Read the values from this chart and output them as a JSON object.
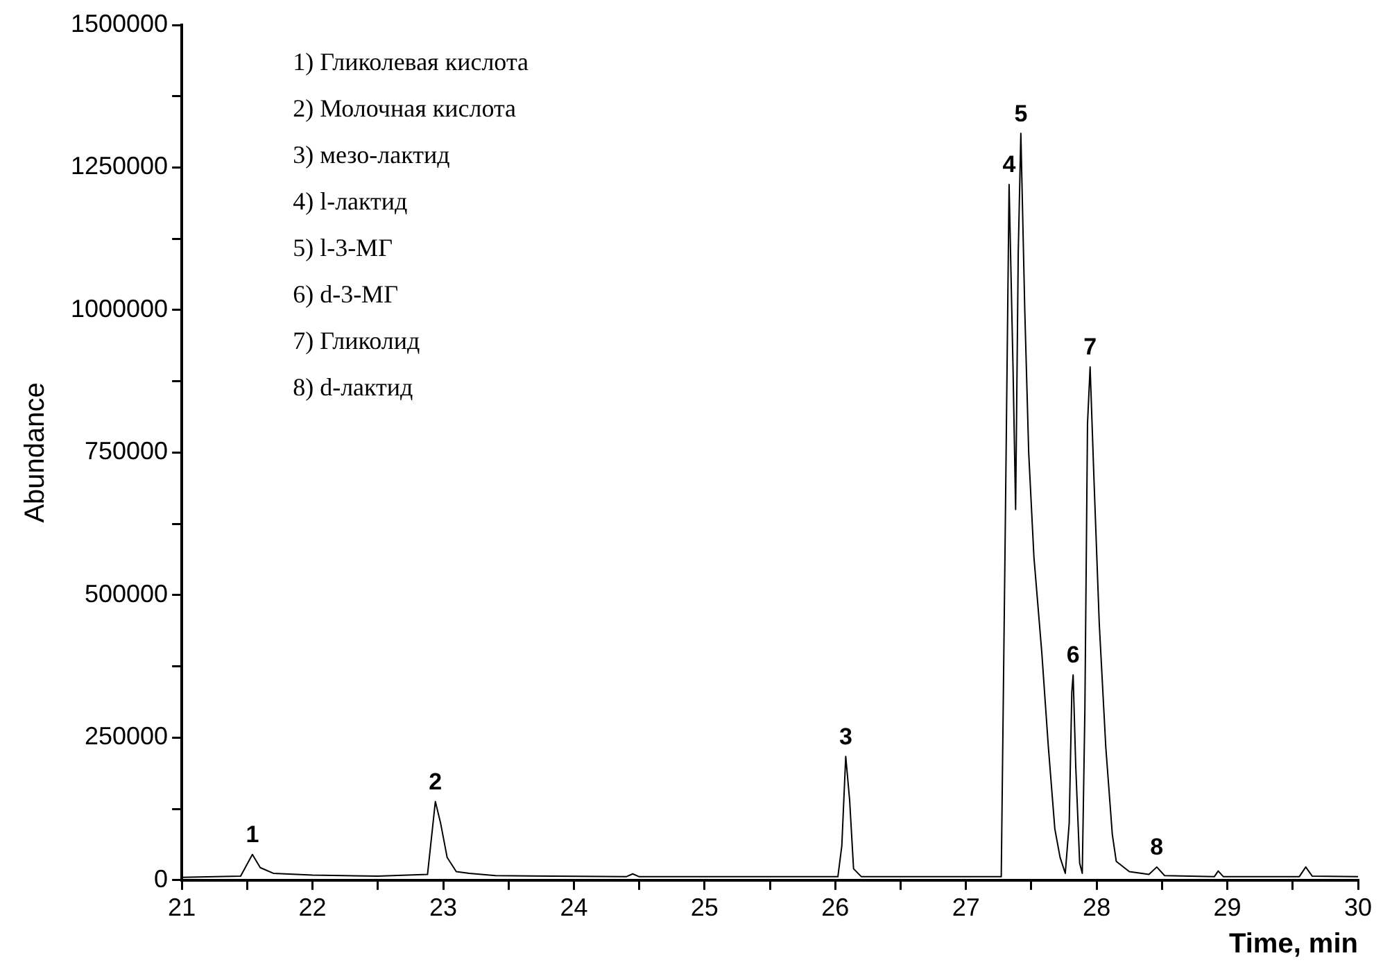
{
  "chart_data": {
    "type": "line",
    "xlabel": "Time, min",
    "ylabel": "Abundance",
    "color": "#000000",
    "marker": "none",
    "line_style": "solid",
    "grid": false,
    "legend": false,
    "x": [
      21,
      21.45,
      21.54,
      21.6,
      21.7,
      22.0,
      22.5,
      22.88,
      22.94,
      22.98,
      23.03,
      23.1,
      23.2,
      23.4,
      24.4,
      24.45,
      24.5,
      26.02,
      26.05,
      26.08,
      26.11,
      26.14,
      26.2,
      27.2,
      27.27,
      27.3,
      27.33,
      27.36,
      27.38,
      27.4,
      27.42,
      27.45,
      27.48,
      27.52,
      27.58,
      27.63,
      27.68,
      27.72,
      27.76,
      27.79,
      27.81,
      27.82,
      27.84,
      27.87,
      27.89,
      27.91,
      27.93,
      27.95,
      27.98,
      28.02,
      28.07,
      28.12,
      28.15,
      28.25,
      28.4,
      28.46,
      28.52,
      28.9,
      28.93,
      28.97,
      29.55,
      29.6,
      29.65,
      30
    ],
    "values": [
      5000,
      7000,
      45000,
      22000,
      12000,
      9000,
      7000,
      10000,
      138000,
      100000,
      40000,
      15000,
      12000,
      8000,
      6000,
      11000,
      6000,
      6000,
      60000,
      217000,
      140000,
      20000,
      6000,
      6000,
      6000,
      600000,
      1220000,
      900000,
      650000,
      1100000,
      1310000,
      1000000,
      750000,
      567000,
      400000,
      235000,
      90000,
      40000,
      12000,
      100000,
      330000,
      360000,
      200000,
      30000,
      12000,
      300000,
      800000,
      900000,
      700000,
      450000,
      233000,
      80000,
      33000,
      15000,
      10000,
      23000,
      8000,
      6000,
      16000,
      6000,
      6000,
      23000,
      7000,
      6000
    ],
    "xlim": [
      21,
      30
    ],
    "xticks": [
      21,
      {
        "value": 21.5,
        "label": null
      },
      22,
      {
        "value": 22.5,
        "label": null
      },
      23,
      {
        "value": 23.5,
        "label": null
      },
      24,
      {
        "value": 24.5,
        "label": null
      },
      25,
      {
        "value": 25.5,
        "label": null
      },
      26,
      {
        "value": 26.5,
        "label": null
      },
      27,
      {
        "value": 27.5,
        "label": null
      },
      28,
      {
        "value": 28.5,
        "label": null
      },
      29,
      {
        "value": 29.5,
        "label": null
      },
      30
    ],
    "ylim": [
      0,
      1500000
    ],
    "yticks": [
      0,
      {
        "value": 125000,
        "label": null
      },
      250000,
      {
        "value": 375000,
        "label": null
      },
      500000,
      {
        "value": 625000,
        "label": null
      },
      750000,
      {
        "value": 875000,
        "label": null
      },
      1000000,
      {
        "value": 1125000,
        "label": null
      },
      1250000,
      {
        "value": 1375000,
        "label": null
      },
      1500000
    ],
    "annotations": [
      {
        "text": "1",
        "x": 21.54,
        "y": 45000
      },
      {
        "text": "2",
        "x": 22.94,
        "y": 138000
      },
      {
        "text": "3",
        "x": 26.08,
        "y": 217000
      },
      {
        "text": "4",
        "x": 27.33,
        "y": 1220000
      },
      {
        "text": "5",
        "x": 27.42,
        "y": 1310000
      },
      {
        "text": "6",
        "x": 27.82,
        "y": 360000
      },
      {
        "text": "7",
        "x": 27.95,
        "y": 900000
      },
      {
        "text": "8",
        "x": 28.46,
        "y": 23000
      },
      "1) Гликолевая кислота",
      "2) Молочная кислота",
      "3) мезо-лактид",
      "4) l-лактид",
      "5) l-3-МГ",
      "6) d-3-МГ",
      "7) Гликолид",
      "8) d-лактид"
    ]
  }
}
